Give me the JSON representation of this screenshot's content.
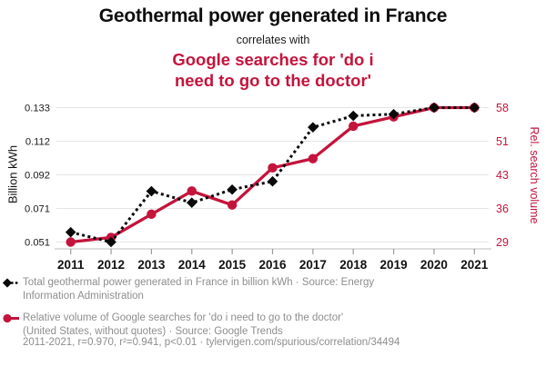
{
  "header": {
    "title": "Geothermal power generated in France",
    "connector": "correlates with",
    "subtitle": "Google searches for 'do i\nneed to go to the doctor'"
  },
  "colors": {
    "accent_red": "#c4143c",
    "series_black": "#0a0a0a",
    "grid": "#e4e4e4",
    "axis_line": "#c9c9c9",
    "tick_mark": "#9a9a9a",
    "tick_label": "#1a1a1a",
    "muted_text": "#8e8e8e"
  },
  "chart_data": {
    "type": "line",
    "x": [
      2011,
      2012,
      2013,
      2014,
      2015,
      2016,
      2017,
      2018,
      2019,
      2020,
      2021
    ],
    "x_ticks": [
      "2011",
      "2012",
      "2013",
      "2014",
      "2015",
      "2016",
      "2017",
      "2018",
      "2019",
      "2020",
      "2021"
    ],
    "left_axis": {
      "label": "Billion kWh",
      "ticks": [
        "0.051",
        "0.071",
        "0.092",
        "0.112",
        "0.133"
      ],
      "range": [
        0.051,
        0.133
      ]
    },
    "right_axis": {
      "label": "Rel. search volume",
      "ticks": [
        "29",
        "36",
        "43",
        "51",
        "58"
      ],
      "range": [
        29,
        58
      ]
    },
    "grid": true,
    "legend_position": "bottom",
    "series": [
      {
        "name": "Total geothermal power generated in France in billion kWh",
        "axis": "left",
        "style": "dashed",
        "marker": "diamond",
        "color": "#0a0a0a",
        "values": [
          0.057,
          0.051,
          0.082,
          0.075,
          0.083,
          0.088,
          0.121,
          0.128,
          0.129,
          0.133,
          0.133
        ]
      },
      {
        "name": "Relative volume of Google searches for 'do i need to go to the doctor'",
        "axis": "right",
        "style": "solid",
        "marker": "circle",
        "color": "#c4143c",
        "values": [
          29,
          30,
          35,
          40,
          37,
          45,
          47,
          54,
          56,
          58,
          58
        ]
      }
    ]
  },
  "legend": {
    "items": [
      {
        "label": "Total geothermal power generated in France in billion kWh · Source: Energy\nInformation Administration"
      },
      {
        "label": "Relative volume of Google searches for 'do i need to go to the doctor'\n(United States, without quotes) · Source: Google Trends"
      }
    ],
    "footnote": "2011-2021, r=0.970, r²=0.941, p<0.01 · tylervigen.com/spurious/correlation/34494"
  }
}
